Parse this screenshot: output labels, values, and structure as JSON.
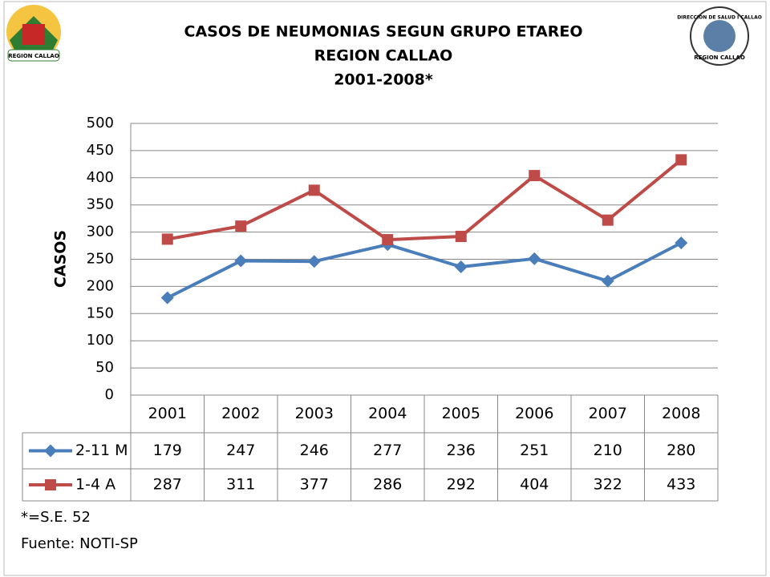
{
  "chart_data": {
    "type": "line",
    "title": [
      "CASOS DE NEUMONIAS SEGUN GRUPO ETAREO",
      "REGION CALLAO",
      "2001-2008*"
    ],
    "y_label": "CASOS",
    "categories": [
      "2001",
      "2002",
      "2003",
      "2004",
      "2005",
      "2006",
      "2007",
      "2008"
    ],
    "series": [
      {
        "name": "2-11 M",
        "color": "#4a7ebb",
        "marker": "diamond",
        "values": [
          179,
          247,
          246,
          277,
          236,
          251,
          210,
          280
        ]
      },
      {
        "name": "1-4 A",
        "color": "#be4b48",
        "marker": "square",
        "values": [
          287,
          311,
          377,
          286,
          292,
          404,
          322,
          433
        ]
      }
    ],
    "ylim": [
      0,
      500
    ],
    "yticks": [
      0,
      50,
      100,
      150,
      200,
      250,
      300,
      350,
      400,
      450,
      500
    ],
    "grid": true,
    "data_table": true,
    "notes": [
      "*=S.E. 52",
      "Fuente: NOTI-SP"
    ]
  },
  "logos": {
    "left": "REGION CALLAO",
    "right": [
      "DIRECCION DE SALUD I CALLAO",
      "REGION CALLAO"
    ]
  }
}
